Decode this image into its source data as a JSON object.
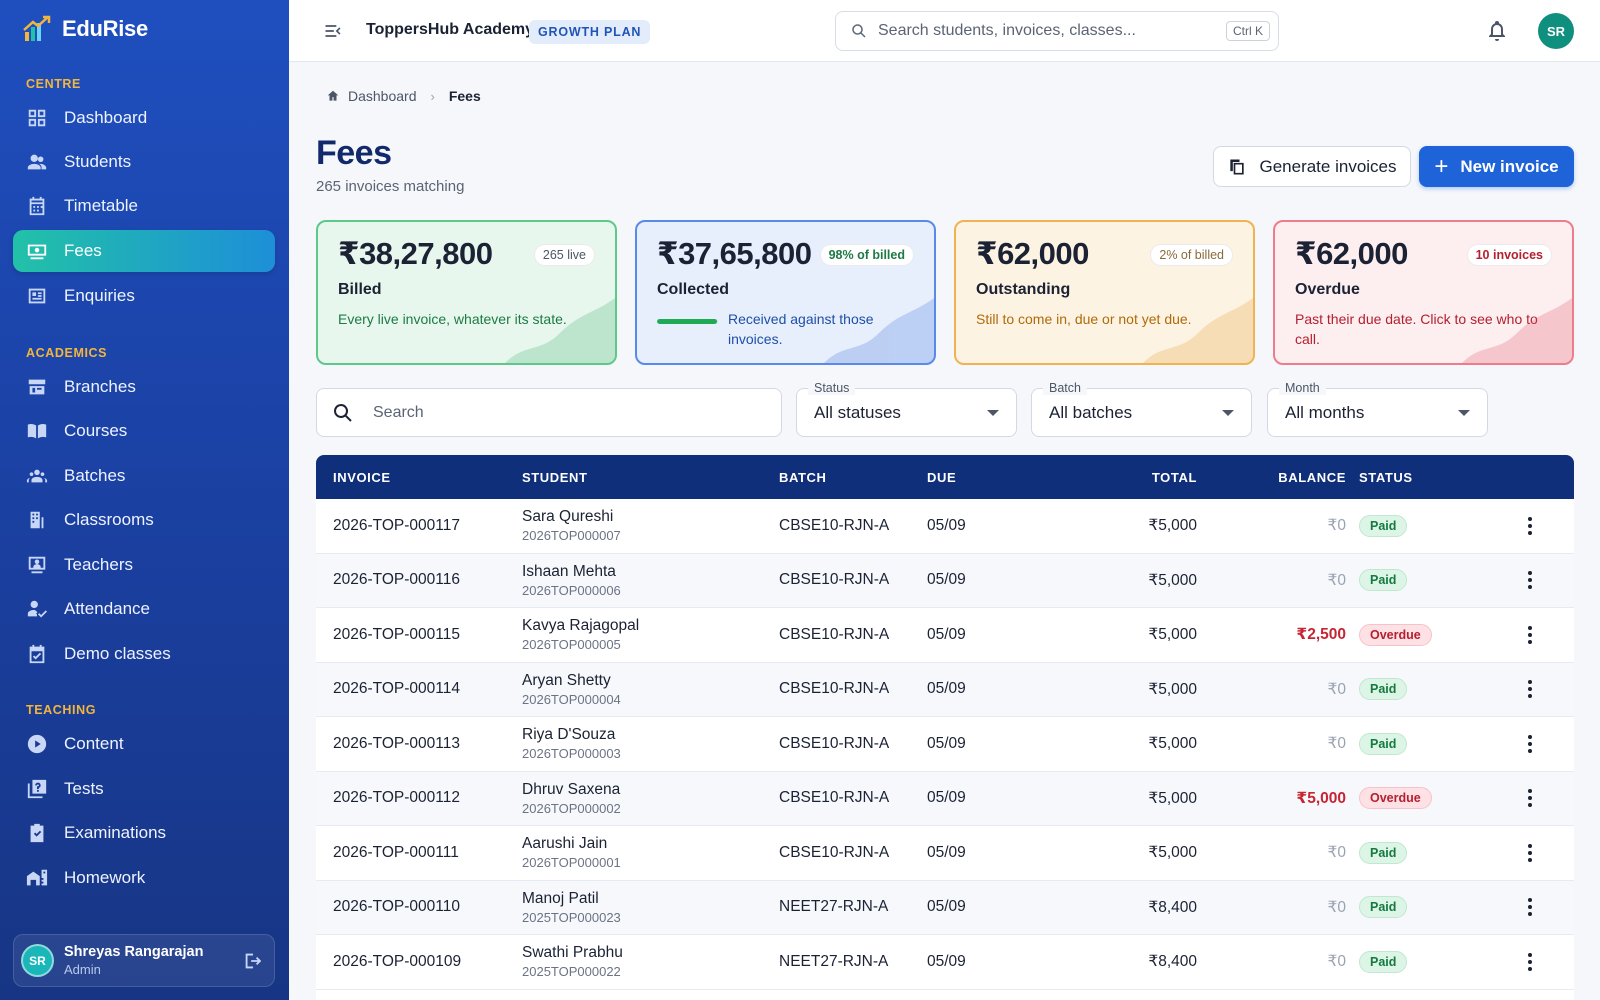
{
  "brand": {
    "name": "EduRise"
  },
  "sidebar": {
    "sections": [
      {
        "title": "CENTRE",
        "items": [
          "Dashboard",
          "Students",
          "Timetable",
          "Fees",
          "Enquiries"
        ]
      },
      {
        "title": "ACADEMICS",
        "items": [
          "Branches",
          "Courses",
          "Batches",
          "Classrooms",
          "Teachers",
          "Attendance",
          "Demo classes"
        ]
      },
      {
        "title": "TEACHING",
        "items": [
          "Content",
          "Tests",
          "Examinations",
          "Homework"
        ]
      }
    ],
    "active": "Fees",
    "user": {
      "initials": "SR",
      "name": "Shreyas Rangarajan",
      "role": "Admin"
    }
  },
  "topbar": {
    "org": "ToppersHub Academy",
    "plan": "GROWTH PLAN",
    "search_placeholder": "Search students, invoices, classes...",
    "shortcut": "Ctrl K",
    "user_initials": "SR"
  },
  "breadcrumb": {
    "home": "Dashboard",
    "current": "Fees"
  },
  "page": {
    "title": "Fees",
    "subtitle": "265 invoices matching"
  },
  "actions": {
    "generate": "Generate invoices",
    "new": "New invoice"
  },
  "stats": {
    "billed": {
      "amount": "₹38,27,800",
      "chip": "265 live",
      "label": "Billed",
      "desc": "Every live invoice, whatever its state."
    },
    "collected": {
      "amount": "₹37,65,800",
      "chip": "98% of billed",
      "label": "Collected",
      "desc": "Received against those invoices.",
      "progress": 0.98
    },
    "outstanding": {
      "amount": "₹62,000",
      "chip": "2% of billed",
      "label": "Outstanding",
      "desc": "Still to come in, due or not yet due."
    },
    "overdue": {
      "amount": "₹62,000",
      "chip": "10 invoices",
      "label": "Overdue",
      "desc": "Past their due date. Click to see who to call."
    }
  },
  "filters": {
    "search_placeholder": "Search",
    "status": {
      "label": "Status",
      "value": "All statuses"
    },
    "batch": {
      "label": "Batch",
      "value": "All batches"
    },
    "month": {
      "label": "Month",
      "value": "All months"
    }
  },
  "table": {
    "columns": {
      "invoice": "INVOICE",
      "student": "STUDENT",
      "batch": "BATCH",
      "due": "DUE",
      "total": "TOTAL",
      "balance": "BALANCE",
      "status": "STATUS"
    },
    "rows": [
      {
        "invoice": "2026-TOP-000117",
        "student": "Sara Qureshi",
        "sid": "2026TOP000007",
        "batch": "CBSE10-RJN-A",
        "due": "05/09",
        "total": "₹5,000",
        "balance": "₹0",
        "status": "Paid"
      },
      {
        "invoice": "2026-TOP-000116",
        "student": "Ishaan Mehta",
        "sid": "2026TOP000006",
        "batch": "CBSE10-RJN-A",
        "due": "05/09",
        "total": "₹5,000",
        "balance": "₹0",
        "status": "Paid"
      },
      {
        "invoice": "2026-TOP-000115",
        "student": "Kavya Rajagopal",
        "sid": "2026TOP000005",
        "batch": "CBSE10-RJN-A",
        "due": "05/09",
        "total": "₹5,000",
        "balance": "₹2,500",
        "status": "Overdue"
      },
      {
        "invoice": "2026-TOP-000114",
        "student": "Aryan Shetty",
        "sid": "2026TOP000004",
        "batch": "CBSE10-RJN-A",
        "due": "05/09",
        "total": "₹5,000",
        "balance": "₹0",
        "status": "Paid"
      },
      {
        "invoice": "2026-TOP-000113",
        "student": "Riya D'Souza",
        "sid": "2026TOP000003",
        "batch": "CBSE10-RJN-A",
        "due": "05/09",
        "total": "₹5,000",
        "balance": "₹0",
        "status": "Paid"
      },
      {
        "invoice": "2026-TOP-000112",
        "student": "Dhruv Saxena",
        "sid": "2026TOP000002",
        "batch": "CBSE10-RJN-A",
        "due": "05/09",
        "total": "₹5,000",
        "balance": "₹5,000",
        "status": "Overdue"
      },
      {
        "invoice": "2026-TOP-000111",
        "student": "Aarushi Jain",
        "sid": "2026TOP000001",
        "batch": "CBSE10-RJN-A",
        "due": "05/09",
        "total": "₹5,000",
        "balance": "₹0",
        "status": "Paid"
      },
      {
        "invoice": "2026-TOP-000110",
        "student": "Manoj Patil",
        "sid": "2025TOP000023",
        "batch": "NEET27-RJN-A",
        "due": "05/09",
        "total": "₹8,400",
        "balance": "₹0",
        "status": "Paid"
      },
      {
        "invoice": "2026-TOP-000109",
        "student": "Swathi Prabhu",
        "sid": "2025TOP000022",
        "batch": "NEET27-RJN-A",
        "due": "05/09",
        "total": "₹8,400",
        "balance": "₹0",
        "status": "Paid"
      }
    ]
  },
  "colors": {
    "primary": "#1e63d8",
    "sidebar": "#1f4fbf",
    "accent": "#f3b63c",
    "paid": "#147a3e",
    "overdue": "#b4202f"
  }
}
